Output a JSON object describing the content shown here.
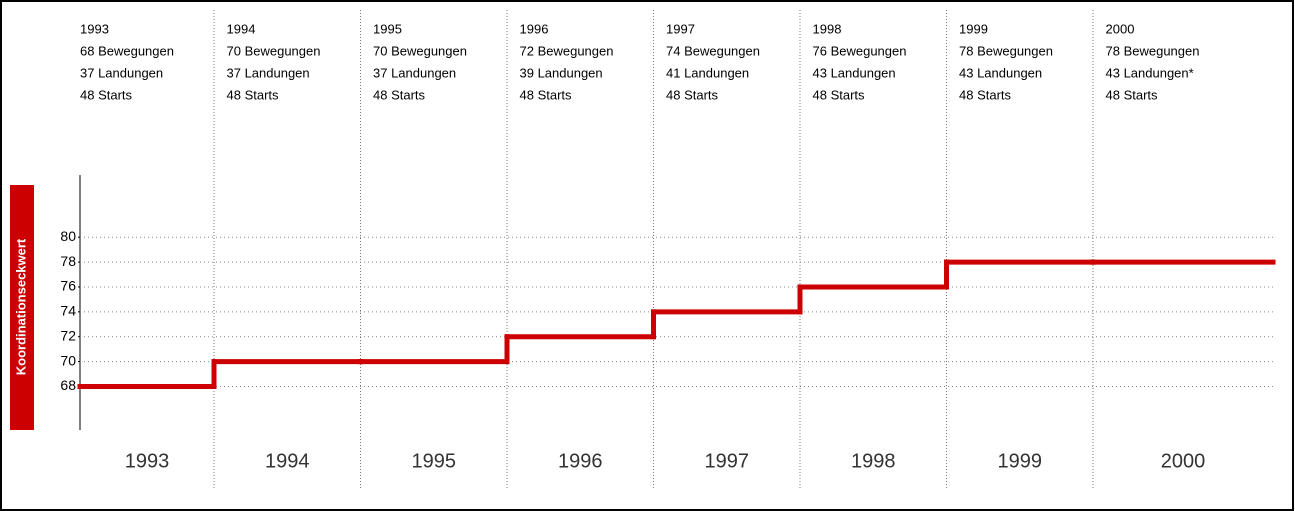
{
  "chart_data": {
    "type": "step",
    "y_label": "Koordinationseckwert",
    "categories": [
      "1993",
      "1994",
      "1995",
      "1996",
      "1997",
      "1998",
      "1999",
      "2000"
    ],
    "values": [
      68,
      70,
      70,
      72,
      74,
      76,
      78,
      78
    ],
    "color": "#cc0000",
    "ylim": [
      64.5,
      85
    ],
    "yticks": [
      68,
      70,
      72,
      74,
      76,
      78,
      80
    ],
    "grid": true,
    "columns": [
      {
        "year": "1993",
        "lines": [
          "68 Bewegungen",
          "37 Landungen",
          "48 Starts"
        ]
      },
      {
        "year": "1994",
        "lines": [
          "70 Bewegungen",
          "37 Landungen",
          "48 Starts"
        ]
      },
      {
        "year": "1995",
        "lines": [
          "70 Bewegungen",
          "37 Landungen",
          "48 Starts"
        ]
      },
      {
        "year": "1996",
        "lines": [
          "72 Bewegungen",
          "39 Landungen",
          "48 Starts"
        ]
      },
      {
        "year": "1997",
        "lines": [
          "74 Bewegungen",
          "41 Landungen",
          "48 Starts"
        ]
      },
      {
        "year": "1998",
        "lines": [
          "76 Bewegungen",
          "43 Landungen",
          "48 Starts"
        ]
      },
      {
        "year": "1999",
        "lines": [
          "78 Bewegungen",
          "43 Landungen",
          "48 Starts"
        ]
      },
      {
        "year": "2000",
        "lines": [
          "78 Bewegungen",
          "43 Landungen*",
          "48 Starts"
        ]
      }
    ]
  }
}
